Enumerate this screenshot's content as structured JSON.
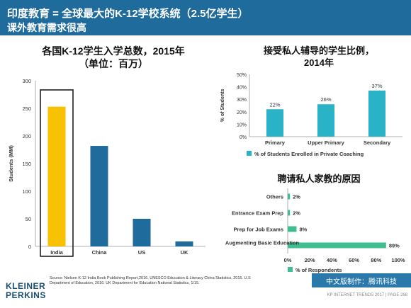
{
  "header": {
    "title_line1": "印度教育 = 全球最大的K-12学校系统（2.5亿学生）",
    "title_line2": "课外教育需求很高"
  },
  "left_chart_title": {
    "line1": "各国K-12学生入学总数，2015年",
    "line2": "（单位：百万）"
  },
  "right_chart_title": {
    "line1": "接受私人辅导的学生比例，",
    "line2": "2014年"
  },
  "reasons_title": "聘请私人家教的原因",
  "source_text": "Source: Nielsen K-12 India Book Publishing Report,2016. UNESCO Education & Literacy China Statistics, 2015. U.S Department of Education, 2016. UK Department for Education National Statistics, 1/15.",
  "logo": {
    "line1": "KLEINER",
    "line2": "PERKINS"
  },
  "bottom_bar": "中文版制作：腾讯科技",
  "footer": "KP INTERNET TRENDS 2017  |  PAGE 268",
  "colors": {
    "header_bg": "#1f6b9c",
    "india_bar": "#f9c200",
    "bar": "#1f6b9c",
    "teal": "#2ab3c6",
    "green": "#3fbf8f"
  },
  "chart_data": [
    {
      "type": "bar",
      "title": "各国K-12学生入学总数，2015年（单位：百万）",
      "categories": [
        "India",
        "China",
        "US",
        "UK"
      ],
      "values": [
        253,
        182,
        50,
        9
      ],
      "ylabel": "Students (MM)",
      "ylim": [
        0,
        300
      ],
      "yticks": [
        0,
        50,
        100,
        150,
        200,
        250,
        300
      ],
      "highlight": "India",
      "grid": false
    },
    {
      "type": "bar",
      "title": "接受私人辅导的学生比例，2014年",
      "categories": [
        "Primary",
        "Upper Primary",
        "Secondary"
      ],
      "values": [
        22,
        26,
        37
      ],
      "value_labels": [
        "22%",
        "26%",
        "37%"
      ],
      "ylabel": "% of Students",
      "ylim": [
        0,
        50
      ],
      "yticks": [
        "0%",
        "10%",
        "20%",
        "30%",
        "40%",
        "50%"
      ],
      "series": [
        {
          "name": "% of Students Enrolled in Private Coaching",
          "values": [
            22,
            26,
            37
          ]
        }
      ],
      "legend": "bottom",
      "grid": false
    },
    {
      "type": "bar",
      "orientation": "horizontal",
      "title": "聘请私人家教的原因",
      "categories": [
        "Others",
        "Entrance Exam Prep",
        "Prep for Job Exams",
        "Augmenting Basic Education"
      ],
      "values": [
        2,
        2,
        8,
        89
      ],
      "value_labels": [
        "2%",
        "2%",
        "8%",
        "89%"
      ],
      "xlim": [
        0,
        100
      ],
      "xticks": [
        "0%",
        "20%",
        "40%",
        "60%",
        "80%",
        "100%"
      ],
      "series": [
        {
          "name": "% of Respondents",
          "values": [
            2,
            2,
            8,
            89
          ]
        }
      ],
      "legend": "bottom",
      "grid": false
    }
  ]
}
